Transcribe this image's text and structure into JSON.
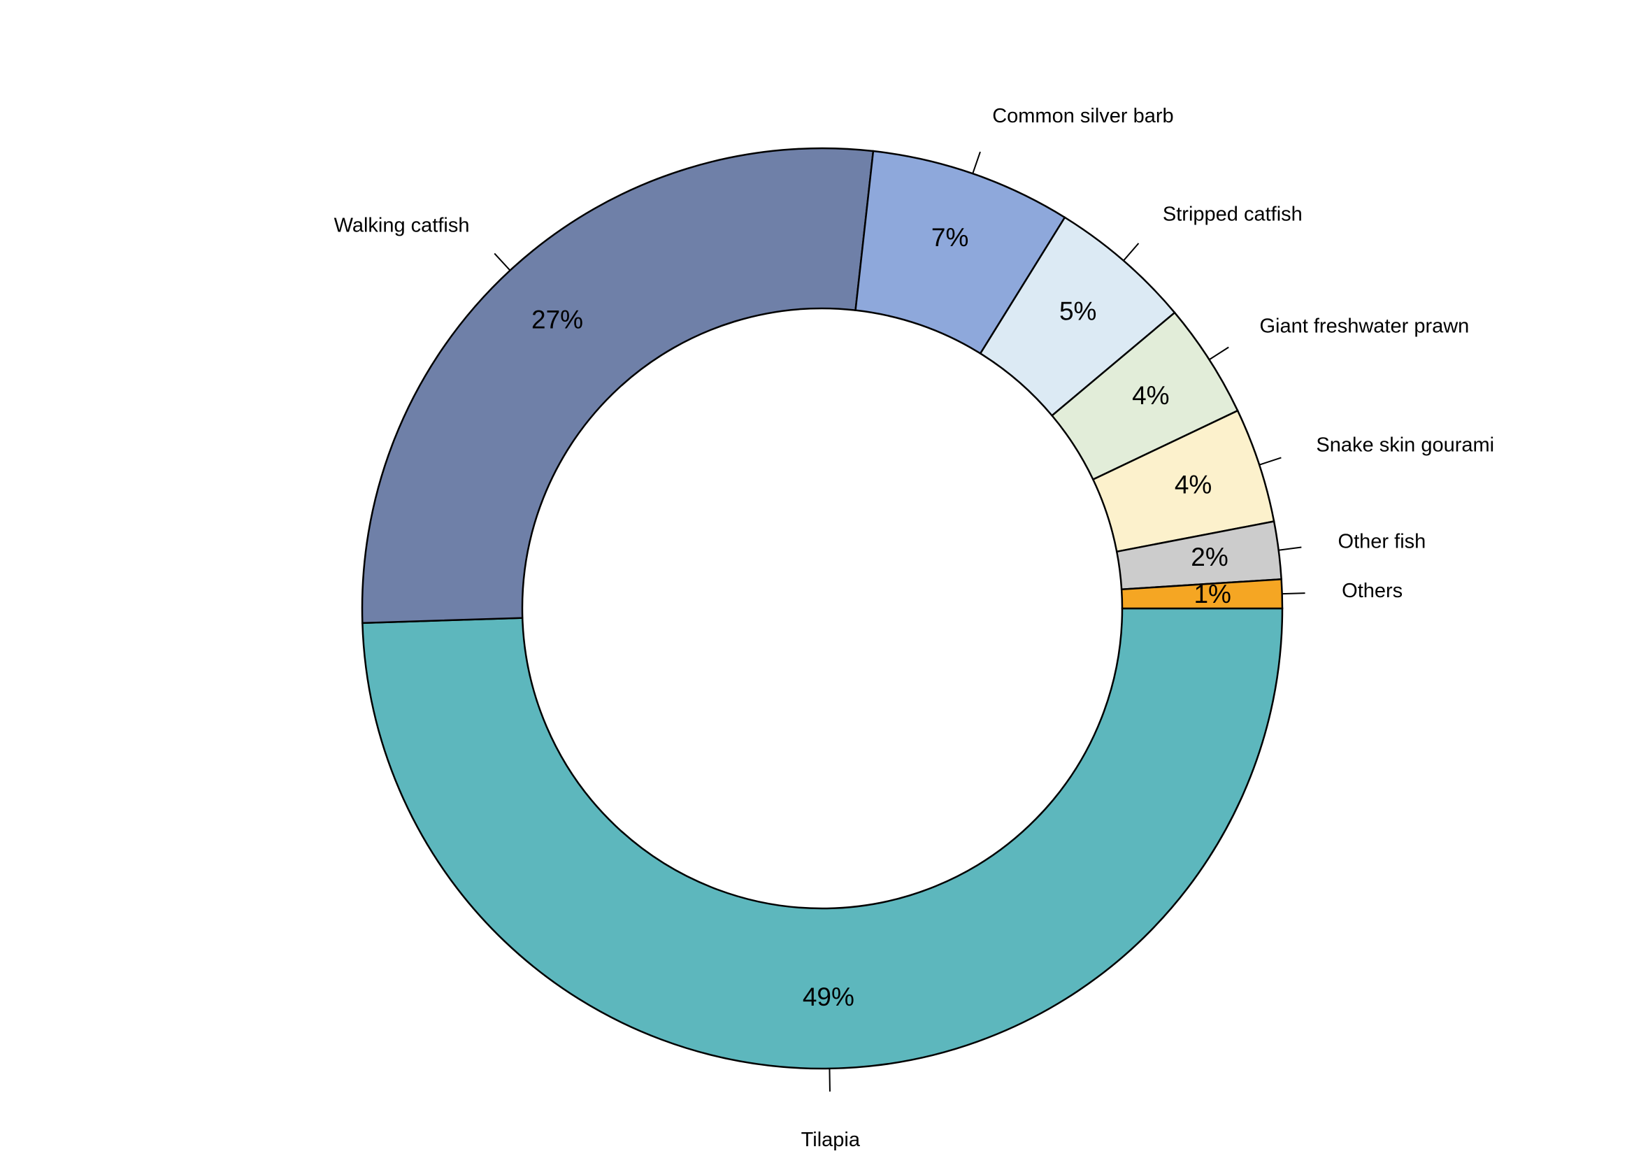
{
  "chart_data": {
    "type": "donut",
    "categories": [
      "Tilapia",
      "Walking catfish",
      "Common silver barb",
      "Stripped catfish",
      "Giant freshwater prawn",
      "Snake skin gourami",
      "Other fish",
      "Others"
    ],
    "values": [
      49,
      27,
      7,
      5,
      4,
      4,
      2,
      1
    ],
    "value_labels": [
      "49%",
      "27%",
      "7%",
      "5%",
      "4%",
      "4%",
      "2%",
      "1%"
    ],
    "colors": [
      "#5db7bd",
      "#6f80a8",
      "#8ea8db",
      "#dceaf4",
      "#e2edd9",
      "#fcf1cc",
      "#cccccc",
      "#f5a623"
    ]
  }
}
